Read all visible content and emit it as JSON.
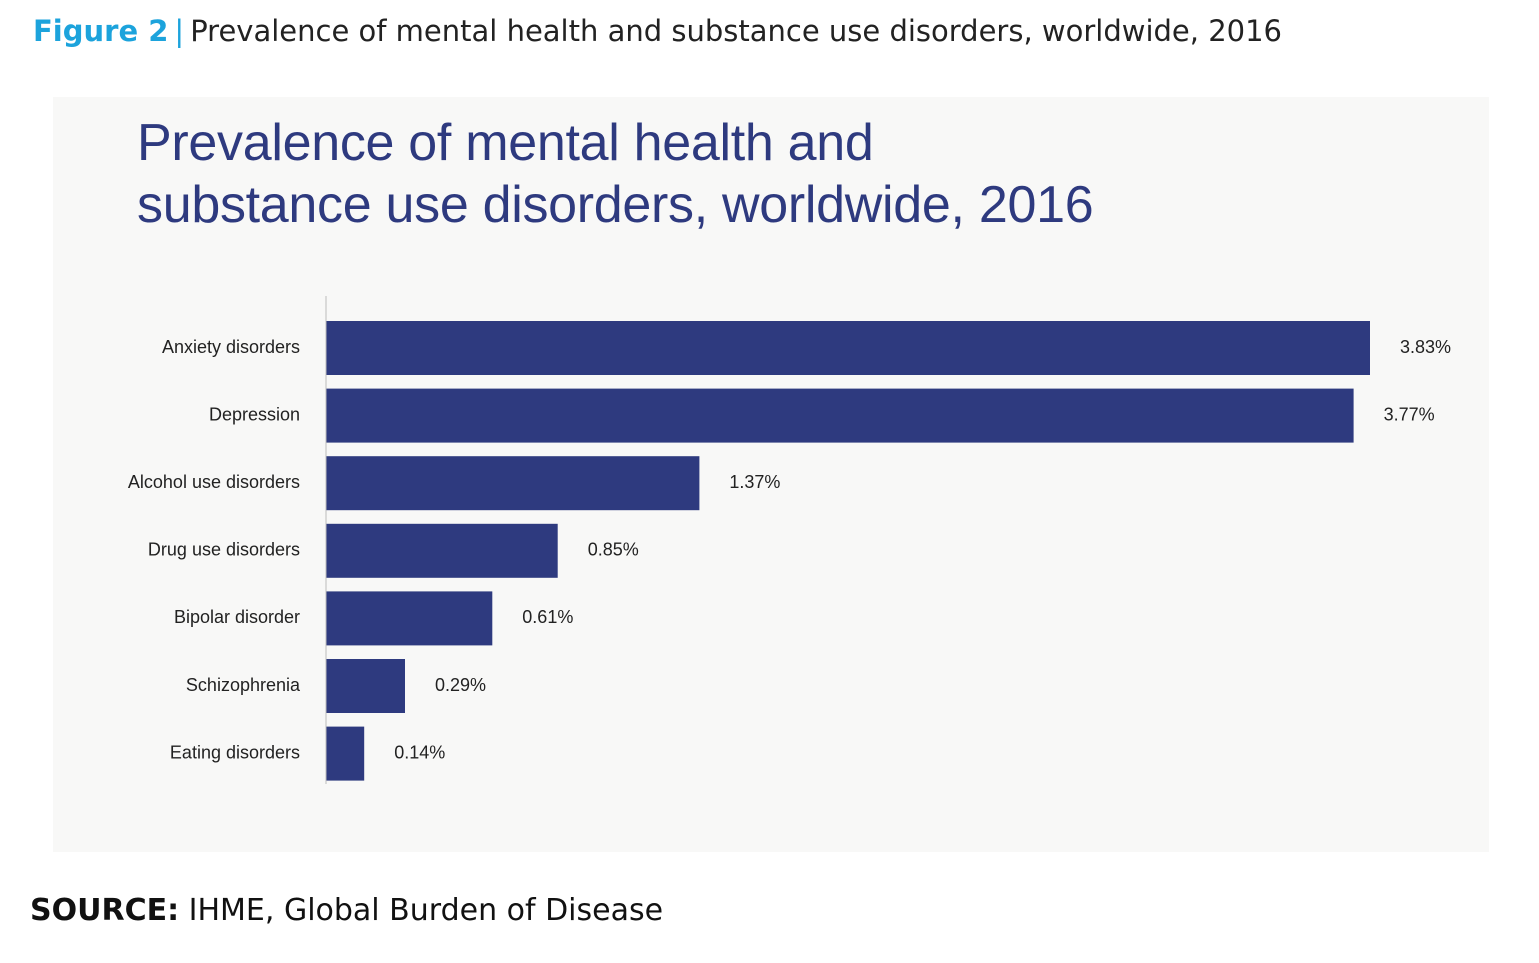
{
  "caption": {
    "label": "Figure 2",
    "separator": "|",
    "text": "Prevalence of mental health and substance use disorders, worldwide, 2016"
  },
  "source": {
    "label": "SOURCE:",
    "text": "IHME, Global Burden of Disease"
  },
  "colors": {
    "bar": "#2e3a7f",
    "title": "#2e3a7f",
    "caption_accent": "#1ca3dc",
    "panel_background": "#f8f8f7"
  },
  "chart_data": {
    "type": "bar",
    "orientation": "horizontal",
    "title_lines": [
      "Prevalence of mental health and",
      "substance use disorders, worldwide, 2016"
    ],
    "categories": [
      "Anxiety disorders",
      "Depression",
      "Alcohol use disorders",
      "Drug use disorders",
      "Bipolar disorder",
      "Schizophrenia",
      "Eating disorders"
    ],
    "values": [
      3.83,
      3.77,
      1.37,
      0.85,
      0.61,
      0.29,
      0.14
    ],
    "value_labels": [
      "3.83%",
      "3.77%",
      "1.37%",
      "0.85%",
      "0.61%",
      "0.29%",
      "0.14%"
    ],
    "unit": "%",
    "xlim": [
      0,
      3.83
    ],
    "grid": false,
    "legend": false
  }
}
